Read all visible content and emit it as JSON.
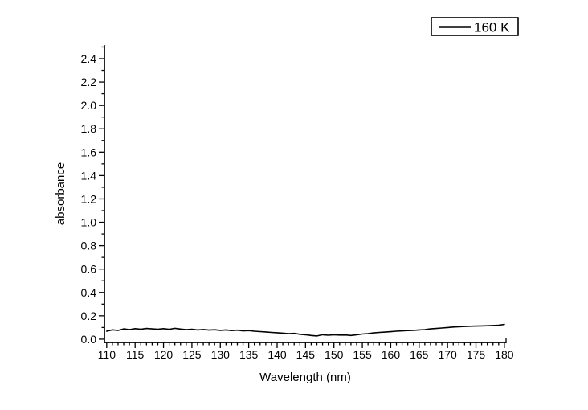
{
  "chart_data": {
    "type": "line",
    "title": "",
    "xlabel": "Wavelength (nm)",
    "ylabel": "absorbance",
    "xlim": [
      109.6,
      180.3
    ],
    "ylim": [
      -0.028,
      2.51
    ],
    "grid": false,
    "x_ticks": [
      110,
      115,
      120,
      125,
      130,
      135,
      140,
      145,
      150,
      155,
      160,
      165,
      170,
      175,
      180
    ],
    "x_tick_labels": [
      "110",
      "115",
      "120",
      "125",
      "130",
      "135",
      "140",
      "145",
      "150",
      "155",
      "160",
      "165",
      "170",
      "175",
      "180"
    ],
    "x_minor": {
      "from": 110,
      "to": 180,
      "step": 1
    },
    "y_ticks": [
      0.0,
      0.2,
      0.4,
      0.6,
      0.8,
      1.0,
      1.2,
      1.4,
      1.6,
      1.8,
      2.0,
      2.2,
      2.4
    ],
    "y_tick_labels": [
      "0.0",
      "0.2",
      "0.4",
      "0.6",
      "0.8",
      "1.0",
      "1.2",
      "1.4",
      "1.6",
      "1.8",
      "2.0",
      "2.2",
      "2.4"
    ],
    "y_minor": {
      "from": 0.0,
      "to": 2.5,
      "step": 0.1
    },
    "legend": {
      "position": "top-right",
      "label": "160 K"
    },
    "colors": {
      "line": "#000000",
      "axis": "#000000",
      "text": "#000000",
      "background": "#ffffff"
    },
    "series": [
      {
        "name": "160 K",
        "x": [
          110,
          111,
          112,
          113,
          114,
          115,
          116,
          117,
          118,
          119,
          120,
          121,
          122,
          123,
          124,
          125,
          126,
          127,
          128,
          129,
          130,
          131,
          132,
          133,
          134,
          135,
          136,
          137,
          138,
          139,
          140,
          141,
          142,
          143,
          144,
          145,
          146,
          147,
          148,
          149,
          150,
          151,
          152,
          153,
          154,
          155,
          156,
          157,
          158,
          159,
          160,
          161,
          162,
          163,
          164,
          165,
          166,
          167,
          168,
          169,
          170,
          171,
          172,
          173,
          174,
          175,
          176,
          177,
          178,
          179,
          180
        ],
        "y": [
          0.068,
          0.08,
          0.075,
          0.088,
          0.082,
          0.09,
          0.085,
          0.092,
          0.088,
          0.085,
          0.09,
          0.084,
          0.093,
          0.087,
          0.082,
          0.085,
          0.079,
          0.083,
          0.078,
          0.081,
          0.076,
          0.079,
          0.074,
          0.077,
          0.071,
          0.074,
          0.068,
          0.065,
          0.062,
          0.058,
          0.055,
          0.052,
          0.048,
          0.05,
          0.042,
          0.038,
          0.032,
          0.028,
          0.038,
          0.034,
          0.038,
          0.035,
          0.036,
          0.032,
          0.038,
          0.044,
          0.048,
          0.054,
          0.058,
          0.061,
          0.064,
          0.068,
          0.071,
          0.074,
          0.076,
          0.079,
          0.082,
          0.088,
          0.092,
          0.096,
          0.1,
          0.104,
          0.106,
          0.109,
          0.111,
          0.112,
          0.114,
          0.115,
          0.117,
          0.12,
          0.126
        ]
      }
    ]
  }
}
